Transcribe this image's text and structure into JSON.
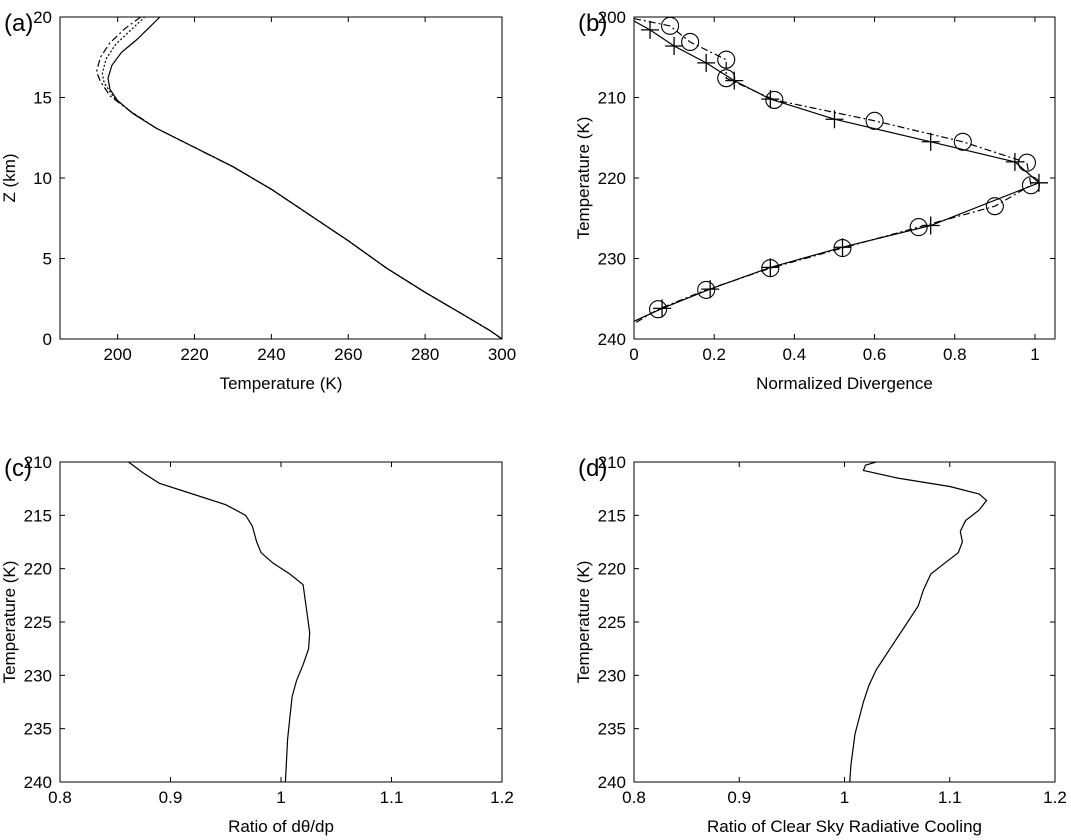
{
  "chart_data": [
    {
      "panel": "(a)",
      "type": "line",
      "xlabel": "Temperature (K)",
      "ylabel": "Z (km)",
      "xlim": [
        185,
        300
      ],
      "ylim": [
        0,
        20
      ],
      "xticks": [
        200,
        220,
        240,
        260,
        280,
        300
      ],
      "yticks": [
        0,
        5,
        10,
        15,
        20
      ],
      "y_inverted": false,
      "grid": false,
      "series": [
        {
          "style": "solid",
          "points": [
            [
              300,
              0
            ],
            [
              297,
              0.5
            ],
            [
              290,
              1.5
            ],
            [
              280,
              2.9
            ],
            [
              270,
              4.4
            ],
            [
              260,
              6.1
            ],
            [
              250,
              7.7
            ],
            [
              240,
              9.3
            ],
            [
              230,
              10.7
            ],
            [
              220,
              11.9
            ],
            [
              210,
              13.1
            ],
            [
              204,
              14
            ],
            [
              200,
              14.8
            ],
            [
              198,
              15.5
            ],
            [
              197.5,
              16.2
            ],
            [
              198.5,
              17
            ],
            [
              201,
              17.8
            ],
            [
              205,
              18.6
            ],
            [
              208,
              19.3
            ],
            [
              211,
              20
            ]
          ]
        },
        {
          "style": "dashdot",
          "points": [
            [
              300,
              0
            ],
            [
              297,
              0.5
            ],
            [
              290,
              1.5
            ],
            [
              280,
              2.9
            ],
            [
              270,
              4.4
            ],
            [
              260,
              6.1
            ],
            [
              250,
              7.7
            ],
            [
              240,
              9.3
            ],
            [
              230,
              10.7
            ],
            [
              220,
              11.9
            ],
            [
              210,
              13.1
            ],
            [
              203,
              14.2
            ],
            [
              198,
              15.1
            ],
            [
              195.5,
              16
            ],
            [
              194.5,
              16.6
            ],
            [
              195.5,
              17.5
            ],
            [
              198,
              18.4
            ],
            [
              202,
              19.3
            ],
            [
              206,
              20
            ]
          ]
        },
        {
          "style": "dotted",
          "points": [
            [
              300,
              0
            ],
            [
              297,
              0.5
            ],
            [
              290,
              1.5
            ],
            [
              280,
              2.9
            ],
            [
              270,
              4.4
            ],
            [
              260,
              6.1
            ],
            [
              250,
              7.7
            ],
            [
              240,
              9.3
            ],
            [
              230,
              10.7
            ],
            [
              220,
              11.9
            ],
            [
              210,
              13.1
            ],
            [
              203.5,
              14.1
            ],
            [
              199,
              15
            ],
            [
              196.5,
              15.9
            ],
            [
              196,
              16.5
            ],
            [
              197,
              17.4
            ],
            [
              199.5,
              18.3
            ],
            [
              203.5,
              19.2
            ],
            [
              207,
              20
            ]
          ]
        }
      ]
    },
    {
      "panel": "(b)",
      "type": "line",
      "xlabel": "Normalized Divergence",
      "ylabel": "Temperature (K)",
      "xlim": [
        0,
        1.05
      ],
      "ylim": [
        200,
        240
      ],
      "xticks": [
        0,
        0.2,
        0.4,
        0.6,
        0.8,
        1
      ],
      "yticks": [
        200,
        210,
        220,
        230,
        240
      ],
      "y_inverted": true,
      "grid": false,
      "series": [
        {
          "style": "solid",
          "marker": "plus",
          "points": [
            [
              0,
              200.5
            ],
            [
              0.04,
              201.6
            ],
            [
              0.1,
              203.6
            ],
            [
              0.18,
              205.7
            ],
            [
              0.25,
              207.9
            ],
            [
              0.34,
              210.2
            ],
            [
              0.5,
              212.7
            ],
            [
              0.74,
              215.5
            ],
            [
              0.95,
              218
            ],
            [
              1.01,
              220.6
            ],
            [
              0.74,
              225.9
            ],
            [
              0.52,
              228.6
            ],
            [
              0.34,
              231.1
            ],
            [
              0.19,
              233.8
            ],
            [
              0.07,
              236.2
            ],
            [
              0,
              237.8
            ]
          ],
          "marker_points": [
            [
              0.04,
              201.6
            ],
            [
              0.1,
              203.6
            ],
            [
              0.18,
              205.7
            ],
            [
              0.25,
              207.9
            ],
            [
              0.34,
              210.2
            ],
            [
              0.5,
              212.7
            ],
            [
              0.74,
              215.5
            ],
            [
              0.95,
              218
            ],
            [
              1.01,
              220.6
            ],
            [
              0.74,
              225.9
            ],
            [
              0.52,
              228.6
            ],
            [
              0.34,
              231.1
            ],
            [
              0.19,
              233.8
            ],
            [
              0.07,
              236.2
            ]
          ]
        },
        {
          "style": "dashdot",
          "marker": "circle",
          "points": [
            [
              0,
              200.2
            ],
            [
              0.09,
              201.1
            ],
            [
              0.14,
              203.1
            ],
            [
              0.23,
              205.3
            ],
            [
              0.23,
              207.6
            ],
            [
              0.35,
              210.3
            ],
            [
              0.6,
              212.9
            ],
            [
              0.82,
              215.5
            ],
            [
              0.98,
              218.1
            ],
            [
              0.99,
              220.9
            ],
            [
              0.9,
              223.5
            ],
            [
              0.71,
              226.1
            ],
            [
              0.52,
              228.7
            ],
            [
              0.34,
              231.2
            ],
            [
              0.18,
              233.9
            ],
            [
              0.06,
              236.3
            ],
            [
              0,
              238.1
            ]
          ],
          "marker_points": [
            [
              0.09,
              201.1
            ],
            [
              0.14,
              203.1
            ],
            [
              0.23,
              205.3
            ],
            [
              0.23,
              207.6
            ],
            [
              0.35,
              210.3
            ],
            [
              0.6,
              212.9
            ],
            [
              0.82,
              215.5
            ],
            [
              0.98,
              218.1
            ],
            [
              0.99,
              220.9
            ],
            [
              0.9,
              223.5
            ],
            [
              0.71,
              226.1
            ],
            [
              0.52,
              228.7
            ],
            [
              0.34,
              231.2
            ],
            [
              0.18,
              233.9
            ],
            [
              0.06,
              236.3
            ]
          ]
        }
      ]
    },
    {
      "panel": "(c)",
      "type": "line",
      "xlabel": "Ratio of dθ/dp",
      "ylabel": "Temperature (K)",
      "xlim": [
        0.8,
        1.2
      ],
      "ylim": [
        210,
        240
      ],
      "xticks": [
        0.8,
        0.9,
        1,
        1.1,
        1.2
      ],
      "xtick_labels": [
        "0.8",
        "0.9",
        "1",
        "1.1",
        "1.2"
      ],
      "yticks": [
        210,
        215,
        220,
        225,
        230,
        235,
        240
      ],
      "y_inverted": true,
      "grid": false,
      "series": [
        {
          "style": "solid",
          "points": [
            [
              0.862,
              210
            ],
            [
              0.875,
              211
            ],
            [
              0.89,
              212
            ],
            [
              0.92,
              213
            ],
            [
              0.95,
              214
            ],
            [
              0.968,
              215
            ],
            [
              0.974,
              216
            ],
            [
              0.978,
              217.5
            ],
            [
              0.982,
              218.5
            ],
            [
              0.993,
              219.5
            ],
            [
              1.008,
              220.5
            ],
            [
              1.02,
              221.5
            ],
            [
              1.022,
              223
            ],
            [
              1.024,
              224.5
            ],
            [
              1.026,
              226
            ],
            [
              1.025,
              227.5
            ],
            [
              1.02,
              229
            ],
            [
              1.014,
              230.5
            ],
            [
              1.01,
              232
            ],
            [
              1.008,
              234
            ],
            [
              1.006,
              236
            ],
            [
              1.005,
              238
            ],
            [
              1.004,
              240
            ]
          ]
        }
      ]
    },
    {
      "panel": "(d)",
      "type": "line",
      "xlabel": "Ratio of Clear Sky Radiative Cooling",
      "ylabel": "Temperature (K)",
      "xlim": [
        0.8,
        1.2
      ],
      "ylim": [
        210,
        240
      ],
      "xticks": [
        0.8,
        0.9,
        1,
        1.1,
        1.2
      ],
      "xtick_labels": [
        "0.8",
        "0.9",
        "1",
        "1.1",
        "1.2"
      ],
      "yticks": [
        210,
        215,
        220,
        225,
        230,
        235,
        240
      ],
      "y_inverted": true,
      "grid": false,
      "series": [
        {
          "style": "solid",
          "points": [
            [
              1.03,
              210
            ],
            [
              1.02,
              210.3
            ],
            [
              1.018,
              210.8
            ],
            [
              1.05,
              211.5
            ],
            [
              1.1,
              212.3
            ],
            [
              1.128,
              213
            ],
            [
              1.135,
              213.6
            ],
            [
              1.128,
              214.5
            ],
            [
              1.115,
              215.5
            ],
            [
              1.11,
              216.5
            ],
            [
              1.112,
              217.5
            ],
            [
              1.108,
              218.5
            ],
            [
              1.095,
              219.5
            ],
            [
              1.082,
              220.5
            ],
            [
              1.075,
              222
            ],
            [
              1.07,
              223.5
            ],
            [
              1.06,
              225
            ],
            [
              1.05,
              226.5
            ],
            [
              1.04,
              228
            ],
            [
              1.03,
              229.5
            ],
            [
              1.023,
              231
            ],
            [
              1.018,
              232.5
            ],
            [
              1.014,
              234
            ],
            [
              1.01,
              235.5
            ],
            [
              1.008,
              237
            ],
            [
              1.006,
              238.5
            ],
            [
              1.005,
              240
            ]
          ]
        }
      ]
    }
  ]
}
